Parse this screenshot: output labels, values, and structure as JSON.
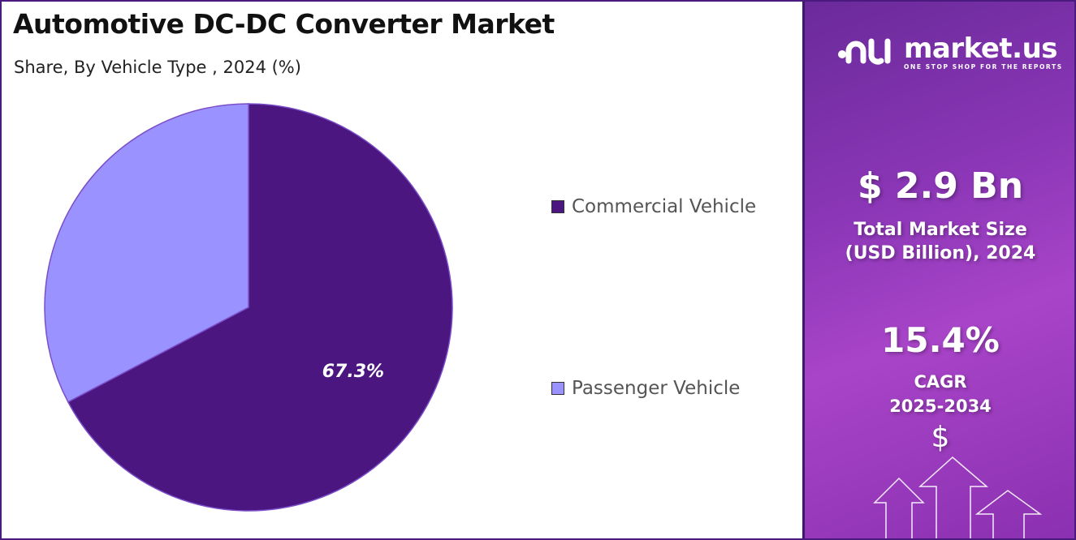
{
  "title": "Automotive DC-DC Converter Market",
  "subtitle": "Share, By Vehicle Type , 2024 (%)",
  "chart_data": {
    "type": "pie",
    "categories": [
      "Commercial Vehicle",
      "Passenger Vehicle"
    ],
    "values": [
      67.3,
      32.7
    ],
    "data_labels": [
      "67.3%",
      ""
    ],
    "colors": [
      "#4b1680",
      "#9a92ff"
    ],
    "legend_position": "right"
  },
  "sidebar": {
    "brand": "market.us",
    "tagline": "ONE STOP SHOP FOR THE REPORTS",
    "market_size": "$ 2.9 Bn",
    "market_size_label_1": "Total Market Size",
    "market_size_label_2": "(USD Billion), 2024",
    "cagr": "15.4%",
    "cagr_label": "CAGR",
    "cagr_period": "2025-2034",
    "dollar_symbol": "$"
  }
}
